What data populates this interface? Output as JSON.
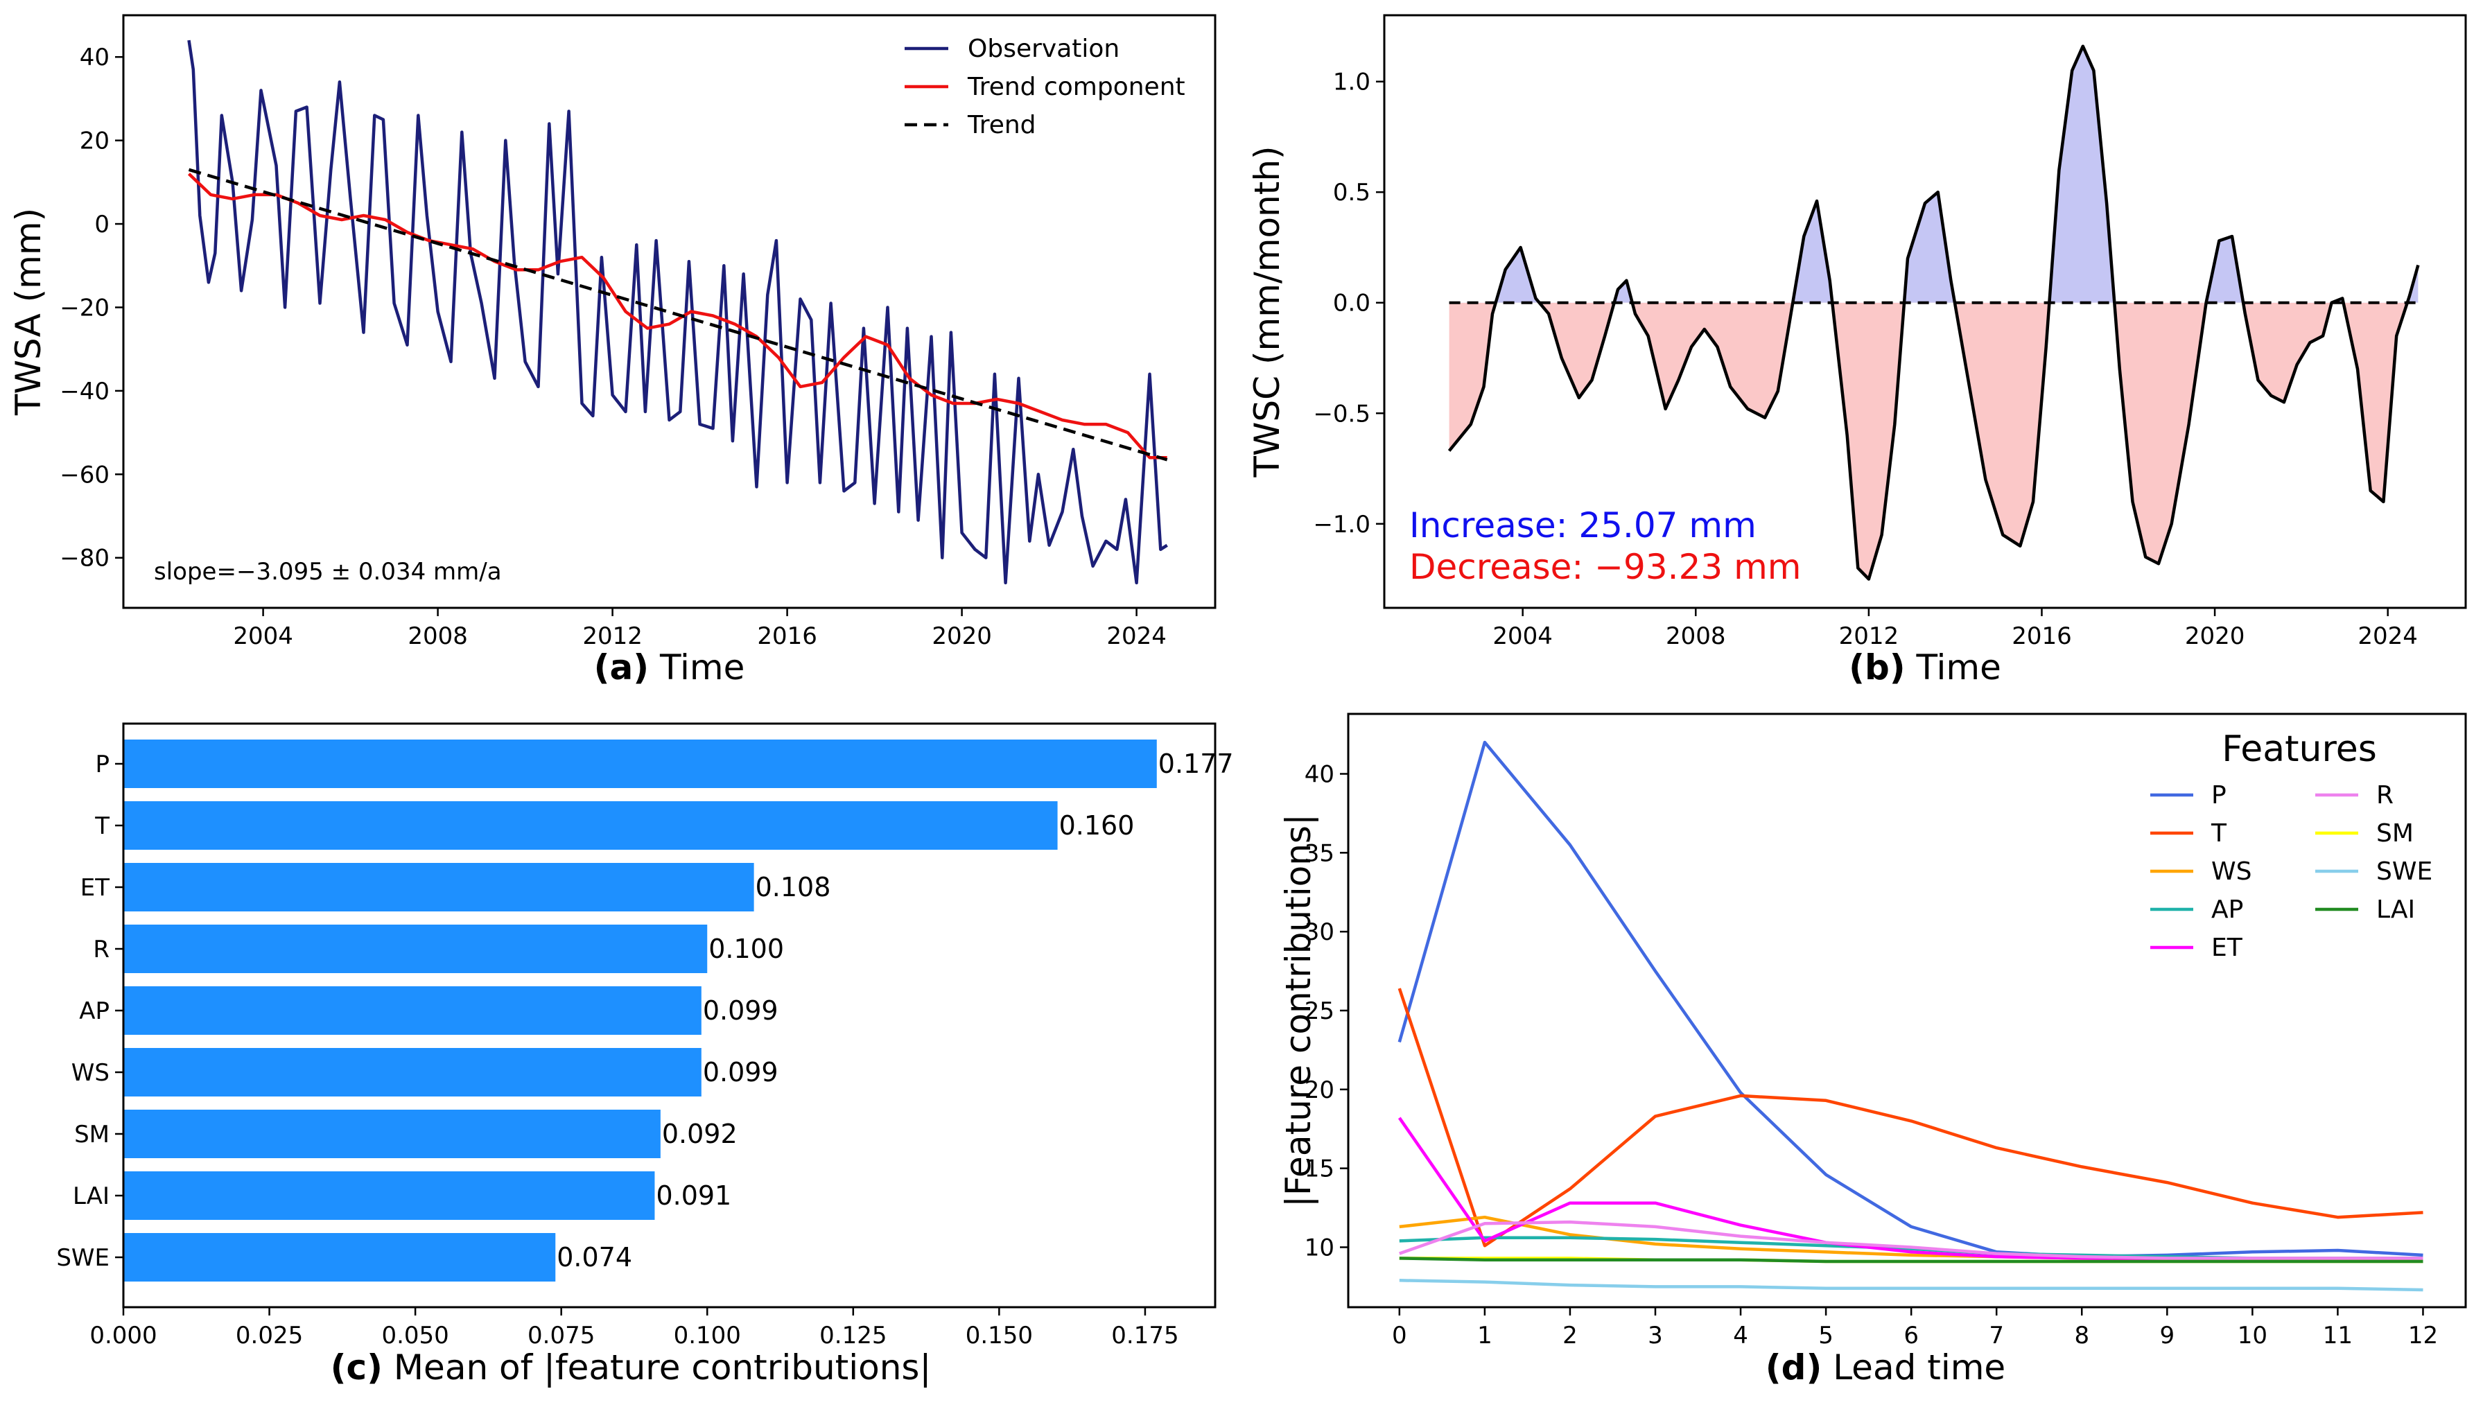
{
  "colors": {
    "navy": "#1c1f78",
    "red": "#ee1111",
    "black": "#000000",
    "blue_text": "#1010ee",
    "red_text": "#ee1111",
    "fill_pos": "#c5c6f4",
    "fill_neg": "#fbc8c8",
    "bar": "#1e90ff"
  },
  "chart_data": [
    {
      "id": "a",
      "type": "line",
      "panel_label": "(a)",
      "xlabel": "Time",
      "ylabel": "TWSA (mm)",
      "xlim": [
        2000.8,
        2025.8
      ],
      "ylim": [
        -92,
        50
      ],
      "xticks": [
        2004,
        2008,
        2012,
        2016,
        2020,
        2024
      ],
      "yticks": [
        40,
        20,
        0,
        -20,
        -40,
        -60,
        -80
      ],
      "ytick_labels": [
        "40",
        "20",
        "0",
        "−20",
        "−40",
        "−60",
        "−80"
      ],
      "annotation": "slope=−3.095 ± 0.034 mm/a",
      "legend": [
        "Observation",
        "Trend component",
        "Trend"
      ],
      "series": [
        {
          "name": "Observation",
          "x": [
            2002.3,
            2002.4,
            2002.55,
            2002.75,
            2002.9,
            2003.05,
            2003.3,
            2003.5,
            2003.75,
            2003.95,
            2004.3,
            2004.5,
            2004.75,
            2005.0,
            2005.3,
            2005.55,
            2005.75,
            2006.0,
            2006.3,
            2006.55,
            2006.75,
            2007.0,
            2007.3,
            2007.55,
            2007.75,
            2008.0,
            2008.3,
            2008.55,
            2008.75,
            2009.0,
            2009.3,
            2009.55,
            2009.75,
            2010.0,
            2010.3,
            2010.55,
            2010.75,
            2011.0,
            2011.3,
            2011.55,
            2011.75,
            2012.0,
            2012.3,
            2012.55,
            2012.75,
            2013.0,
            2013.3,
            2013.55,
            2013.75,
            2014.0,
            2014.3,
            2014.55,
            2014.75,
            2015.0,
            2015.3,
            2015.55,
            2015.75,
            2016.0,
            2016.3,
            2016.55,
            2016.75,
            2017.0,
            2017.3,
            2017.55,
            2017.75,
            2018.0,
            2018.3,
            2018.55,
            2018.75,
            2019.0,
            2019.3,
            2019.55,
            2019.75,
            2020.0,
            2020.3,
            2020.55,
            2020.75,
            2021.0,
            2021.3,
            2021.55,
            2021.75,
            2022.0,
            2022.3,
            2022.55,
            2022.75,
            2023.0,
            2023.3,
            2023.55,
            2023.75,
            2024.0,
            2024.3,
            2024.55,
            2024.7
          ],
          "values": [
            44,
            37,
            2,
            -14,
            -7,
            26,
            10,
            -16,
            1,
            32,
            14,
            -20,
            27,
            28,
            -19,
            13,
            34,
            6,
            -26,
            26,
            25,
            -19,
            -29,
            26,
            2,
            -21,
            -33,
            22,
            -7,
            -19,
            -37,
            20,
            -9,
            -33,
            -39,
            24,
            -12,
            27,
            -43,
            -46,
            -8,
            -41,
            -45,
            -5,
            -45,
            -4,
            -47,
            -45,
            -9,
            -48,
            -49,
            -10,
            -52,
            -12,
            -63,
            -17,
            -4,
            -62,
            -18,
            -23,
            -62,
            -19,
            -64,
            -62,
            -25,
            -67,
            -20,
            -69,
            -25,
            -71,
            -27,
            -80,
            -26,
            -74,
            -78,
            -80,
            -36,
            -86,
            -37,
            -76,
            -60,
            -77,
            -69,
            -54,
            -70,
            -82,
            -76,
            -78,
            -66,
            -86,
            -36,
            -78,
            -77
          ]
        },
        {
          "name": "Trend component",
          "x": [
            2002.3,
            2002.8,
            2003.3,
            2003.8,
            2004.3,
            2004.8,
            2005.3,
            2005.8,
            2006.3,
            2006.8,
            2007.3,
            2007.8,
            2008.3,
            2008.8,
            2009.3,
            2009.8,
            2010.3,
            2010.8,
            2011.3,
            2011.8,
            2012.3,
            2012.8,
            2013.3,
            2013.8,
            2014.3,
            2014.8,
            2015.3,
            2015.8,
            2016.3,
            2016.8,
            2017.3,
            2017.8,
            2018.3,
            2018.8,
            2019.3,
            2019.8,
            2020.3,
            2020.8,
            2021.3,
            2021.8,
            2022.3,
            2022.8,
            2023.3,
            2023.8,
            2024.3,
            2024.7
          ],
          "values": [
            12,
            7,
            6,
            7,
            7,
            5,
            2,
            1,
            2,
            1,
            -2,
            -4,
            -5,
            -6,
            -9,
            -11,
            -11,
            -9,
            -8,
            -13,
            -21,
            -25,
            -24,
            -21,
            -22,
            -24,
            -27,
            -32,
            -39,
            -38,
            -32,
            -27,
            -29,
            -37,
            -41,
            -43,
            -43,
            -42,
            -43,
            -45,
            -47,
            -48,
            -48,
            -50,
            -56,
            -56
          ]
        },
        {
          "name": "Trend",
          "x": [
            2002.3,
            2024.7
          ],
          "values": [
            13,
            -56.5
          ]
        }
      ]
    },
    {
      "id": "b",
      "type": "area",
      "panel_label": "(b)",
      "xlabel": "Time",
      "ylabel": "TWSC (mm/month)",
      "xlim": [
        2000.8,
        2025.8
      ],
      "ylim": [
        -1.38,
        1.3
      ],
      "xticks": [
        2004,
        2008,
        2012,
        2016,
        2020,
        2024
      ],
      "yticks": [
        1.0,
        0.5,
        0.0,
        -0.5,
        -1.0
      ],
      "ytick_labels": [
        "1.0",
        "0.5",
        "0.0",
        "−0.5",
        "−1.0"
      ],
      "annotation_increase": "Increase: 25.07 mm",
      "annotation_decrease": "Decrease: −93.23 mm",
      "series": [
        {
          "name": "TWSC",
          "x": [
            2002.3,
            2002.8,
            2003.1,
            2003.3,
            2003.6,
            2003.95,
            2004.3,
            2004.6,
            2004.9,
            2005.3,
            2005.6,
            2005.9,
            2006.2,
            2006.4,
            2006.6,
            2006.9,
            2007.3,
            2007.6,
            2007.9,
            2008.2,
            2008.5,
            2008.8,
            2009.2,
            2009.6,
            2009.9,
            2010.2,
            2010.5,
            2010.8,
            2011.1,
            2011.5,
            2011.75,
            2012.0,
            2012.3,
            2012.6,
            2012.9,
            2013.3,
            2013.6,
            2013.9,
            2014.3,
            2014.7,
            2015.1,
            2015.5,
            2015.8,
            2016.1,
            2016.4,
            2016.7,
            2016.95,
            2017.2,
            2017.5,
            2017.8,
            2018.1,
            2018.4,
            2018.7,
            2019.0,
            2019.4,
            2019.8,
            2020.1,
            2020.4,
            2020.7,
            2021.0,
            2021.3,
            2021.6,
            2021.9,
            2022.2,
            2022.5,
            2022.7,
            2022.95,
            2023.3,
            2023.6,
            2023.9,
            2024.2,
            2024.5,
            2024.7
          ],
          "values": [
            -0.67,
            -0.55,
            -0.38,
            -0.05,
            0.15,
            0.25,
            0.02,
            -0.05,
            -0.25,
            -0.43,
            -0.35,
            -0.15,
            0.06,
            0.1,
            -0.05,
            -0.15,
            -0.48,
            -0.35,
            -0.2,
            -0.12,
            -0.2,
            -0.38,
            -0.48,
            -0.52,
            -0.4,
            -0.05,
            0.3,
            0.46,
            0.1,
            -0.6,
            -1.2,
            -1.25,
            -1.05,
            -0.55,
            0.2,
            0.45,
            0.5,
            0.1,
            -0.35,
            -0.8,
            -1.05,
            -1.1,
            -0.9,
            -0.2,
            0.6,
            1.05,
            1.16,
            1.05,
            0.45,
            -0.3,
            -0.9,
            -1.15,
            -1.18,
            -1.0,
            -0.55,
            0.0,
            0.28,
            0.3,
            -0.05,
            -0.35,
            -0.42,
            -0.45,
            -0.28,
            -0.18,
            -0.15,
            0.0,
            0.02,
            -0.3,
            -0.85,
            -0.9,
            -0.15,
            0.03,
            0.17
          ]
        }
      ]
    },
    {
      "id": "c",
      "type": "bar",
      "orientation": "horizontal",
      "panel_label": "(c)",
      "xlabel": "Mean of |feature contributions|",
      "xlim": [
        0,
        0.187
      ],
      "xticks": [
        0.0,
        0.025,
        0.05,
        0.075,
        0.1,
        0.125,
        0.15,
        0.175
      ],
      "xtick_labels": [
        "0.000",
        "0.025",
        "0.050",
        "0.075",
        "0.100",
        "0.125",
        "0.150",
        "0.175"
      ],
      "categories": [
        "P",
        "T",
        "ET",
        "R",
        "AP",
        "WS",
        "SM",
        "LAI",
        "SWE"
      ],
      "values": [
        0.177,
        0.16,
        0.108,
        0.1,
        0.099,
        0.099,
        0.092,
        0.091,
        0.074
      ],
      "value_labels": [
        "0.177",
        "0.160",
        "0.108",
        "0.100",
        "0.099",
        "0.099",
        "0.092",
        "0.091",
        "0.074"
      ]
    },
    {
      "id": "d",
      "type": "line",
      "panel_label": "(d)",
      "xlabel": "Lead time",
      "ylabel": "|Feature contributions|",
      "xlim": [
        -0.6,
        12.5
      ],
      "ylim": [
        6.2,
        43.8
      ],
      "x": [
        0,
        1,
        2,
        3,
        4,
        5,
        6,
        7,
        8,
        9,
        10,
        11,
        12
      ],
      "yticks": [
        10,
        15,
        20,
        25,
        30,
        35,
        40
      ],
      "legend_title": "Features",
      "series": [
        {
          "name": "P",
          "color": "#4169e1",
          "values": [
            23.0,
            42.0,
            35.5,
            27.5,
            19.8,
            14.6,
            11.3,
            9.7,
            9.4,
            9.5,
            9.7,
            9.8,
            9.5
          ]
        },
        {
          "name": "T",
          "color": "#ff4500",
          "values": [
            26.4,
            10.1,
            13.7,
            18.3,
            19.6,
            19.3,
            18.0,
            16.3,
            15.1,
            14.1,
            12.8,
            11.9,
            12.2
          ]
        },
        {
          "name": "WS",
          "color": "#ffa500",
          "values": [
            11.3,
            11.9,
            10.8,
            10.2,
            9.9,
            9.7,
            9.5,
            9.4,
            9.3,
            9.3,
            9.3,
            9.3,
            9.3
          ]
        },
        {
          "name": "AP",
          "color": "#20b2aa",
          "values": [
            10.4,
            10.6,
            10.6,
            10.5,
            10.3,
            10.1,
            9.9,
            9.6,
            9.5,
            9.4,
            9.3,
            9.3,
            9.3
          ]
        },
        {
          "name": "ET",
          "color": "#ff00ff",
          "values": [
            18.2,
            10.4,
            12.8,
            12.8,
            11.4,
            10.3,
            9.7,
            9.4,
            9.3,
            9.2,
            9.2,
            9.2,
            9.2
          ]
        },
        {
          "name": "R",
          "color": "#ee82ee",
          "values": [
            9.6,
            11.5,
            11.6,
            11.3,
            10.7,
            10.3,
            10.0,
            9.6,
            9.4,
            9.3,
            9.3,
            9.3,
            9.3
          ]
        },
        {
          "name": "SM",
          "color": "#ffff00",
          "values": [
            9.3,
            9.3,
            9.3,
            9.2,
            9.2,
            9.1,
            9.1,
            9.1,
            9.1,
            9.1,
            9.1,
            9.1,
            9.1
          ]
        },
        {
          "name": "SWE",
          "color": "#87ceeb",
          "values": [
            7.9,
            7.8,
            7.6,
            7.5,
            7.5,
            7.4,
            7.4,
            7.4,
            7.4,
            7.4,
            7.4,
            7.4,
            7.3
          ]
        },
        {
          "name": "LAI",
          "color": "#228b22",
          "values": [
            9.3,
            9.2,
            9.2,
            9.2,
            9.2,
            9.1,
            9.1,
            9.1,
            9.1,
            9.1,
            9.1,
            9.1,
            9.1
          ]
        }
      ]
    }
  ]
}
